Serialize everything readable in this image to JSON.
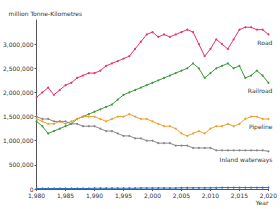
{
  "chart_data": {
    "type": "line",
    "x_label": "Year",
    "y_label": "million Tonne-Kilometres",
    "x": [
      1980,
      1981,
      1982,
      1983,
      1984,
      1985,
      1986,
      1987,
      1988,
      1989,
      1990,
      1991,
      1992,
      1993,
      1994,
      1995,
      1996,
      1997,
      1998,
      1999,
      2000,
      2001,
      2002,
      2003,
      2004,
      2005,
      2006,
      2007,
      2008,
      2009,
      2010,
      2011,
      2012,
      2013,
      2014,
      2015,
      2016,
      2017,
      2018,
      2019,
      2020
    ],
    "series": [
      {
        "name": "Road",
        "color": "#e8336d",
        "values": [
          1900000,
          2000000,
          2100000,
          1950000,
          2050000,
          2150000,
          2200000,
          2300000,
          2350000,
          2400000,
          2400000,
          2450000,
          2550000,
          2600000,
          2650000,
          2700000,
          2750000,
          2900000,
          3050000,
          3200000,
          3250000,
          3150000,
          3200000,
          3150000,
          3200000,
          3250000,
          3300000,
          3250000,
          3000000,
          2750000,
          2900000,
          3100000,
          3000000,
          2900000,
          3100000,
          3300000,
          3350000,
          3350000,
          3300000,
          3300000,
          3200000
        ]
      },
      {
        "name": "Railroad",
        "color": "#3a9a3a",
        "values": [
          1400000,
          1300000,
          1150000,
          1200000,
          1250000,
          1300000,
          1350000,
          1450000,
          1500000,
          1550000,
          1600000,
          1650000,
          1700000,
          1750000,
          1850000,
          1950000,
          2000000,
          2050000,
          2100000,
          2150000,
          2200000,
          2250000,
          2300000,
          2350000,
          2400000,
          2450000,
          2500000,
          2600000,
          2500000,
          2300000,
          2400000,
          2500000,
          2550000,
          2600000,
          2500000,
          2550000,
          2300000,
          2350000,
          2450000,
          2350000,
          2200000
        ]
      },
      {
        "name": "Pipeline",
        "color": "#f0a030",
        "values": [
          1450000,
          1400000,
          1350000,
          1350000,
          1400000,
          1350000,
          1400000,
          1450000,
          1500000,
          1500000,
          1500000,
          1450000,
          1400000,
          1450000,
          1500000,
          1500000,
          1550000,
          1500000,
          1450000,
          1450000,
          1400000,
          1350000,
          1300000,
          1300000,
          1250000,
          1150000,
          1100000,
          1150000,
          1200000,
          1150000,
          1250000,
          1300000,
          1300000,
          1350000,
          1300000,
          1350000,
          1450000,
          1500000,
          1500000,
          1450000,
          1450000
        ]
      },
      {
        "name": "Inland waterways",
        "color": "#888888",
        "values": [
          1500000,
          1450000,
          1450000,
          1400000,
          1400000,
          1400000,
          1350000,
          1350000,
          1300000,
          1300000,
          1300000,
          1250000,
          1200000,
          1200000,
          1150000,
          1100000,
          1100000,
          1050000,
          1050000,
          1000000,
          1000000,
          950000,
          950000,
          950000,
          900000,
          900000,
          900000,
          850000,
          850000,
          850000,
          850000,
          800000,
          800000,
          800000,
          800000,
          800000,
          800000,
          800000,
          800000,
          800000,
          780000
        ]
      },
      {
        "color": "#3070c0",
        "values": [
          10000,
          10000,
          10000,
          10000,
          10000,
          10000,
          10000,
          10000,
          10000,
          10000,
          15000,
          15000,
          15000,
          15000,
          15000,
          15000,
          15000,
          15000,
          20000,
          20000,
          20000,
          20000,
          20000,
          20000,
          20000,
          25000,
          25000,
          25000,
          25000,
          25000,
          25000,
          25000,
          30000,
          30000,
          30000,
          30000,
          30000,
          30000,
          30000,
          30000,
          30000
        ]
      }
    ],
    "xlim": [
      1980,
      2020
    ],
    "xticks": [
      {
        "value": 1980,
        "label": "1,980"
      },
      {
        "value": 1985,
        "label": "1,985"
      },
      {
        "value": 1990,
        "label": "1,990"
      },
      {
        "value": 1995,
        "label": "1,995"
      },
      {
        "value": 2000,
        "label": "2,000"
      },
      {
        "value": 2005,
        "label": "2,005"
      },
      {
        "value": 2010,
        "label": "2,010"
      },
      {
        "value": 2015,
        "label": "2,015"
      },
      {
        "value": 2020,
        "label": "2,020"
      }
    ],
    "ylim": [
      0,
      3500000
    ],
    "yticks": [
      0,
      {
        "value": 500000,
        "label": "500,000"
      },
      {
        "value": 1000000,
        "label": "1,000,000"
      },
      {
        "value": 1500000,
        "label": "1,500,000"
      },
      {
        "value": 2000000,
        "label": "2,000,000"
      },
      {
        "value": 2500000,
        "label": "2,500,000"
      },
      {
        "value": 3000000,
        "label": "3,000,000"
      }
    ],
    "marker": "circle",
    "grid": false
  }
}
